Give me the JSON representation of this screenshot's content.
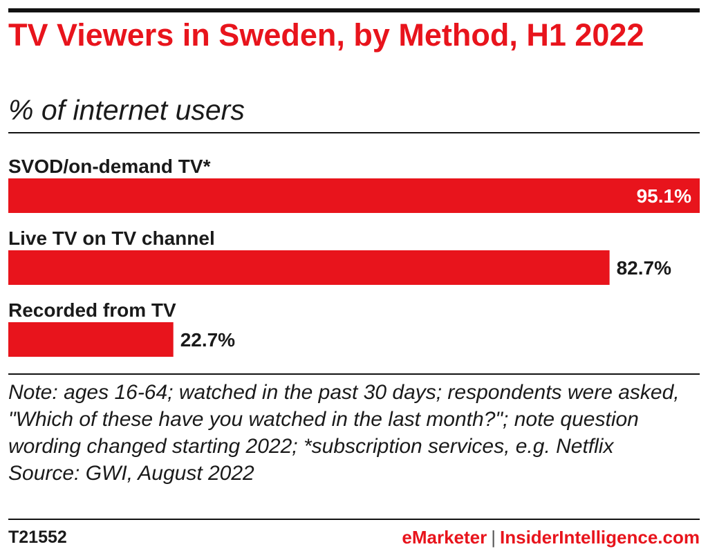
{
  "header": {
    "title": "TV Viewers in Sweden, by Method, H1 2022",
    "subtitle": "% of internet users"
  },
  "colors": {
    "bar": "#e8141c",
    "title": "#e8141c",
    "text": "#1a1a1a"
  },
  "chart_data": {
    "type": "bar",
    "orientation": "horizontal",
    "categories": [
      "SVOD/on-demand TV*",
      "Live TV on TV channel",
      "Recorded from TV"
    ],
    "values": [
      95.1,
      82.7,
      22.7
    ],
    "value_labels": [
      "95.1%",
      "82.7%",
      "22.7%"
    ],
    "unit": "%",
    "xlim": [
      0,
      95.1
    ],
    "grid": false,
    "legend": "none"
  },
  "note": {
    "label": "Note:",
    "text": "ages 16-64; watched in the past 30 days; respondents were asked, \"Which of these have you watched in the last month?\"; note question wording changed starting 2022; *subscription services, e.g. Netflix",
    "source": "Source: GWI, August 2022"
  },
  "footer": {
    "chart_id": "T21552",
    "brand_primary": "eMarketer",
    "separator": "|",
    "brand_secondary": "InsiderIntelligence.com"
  }
}
